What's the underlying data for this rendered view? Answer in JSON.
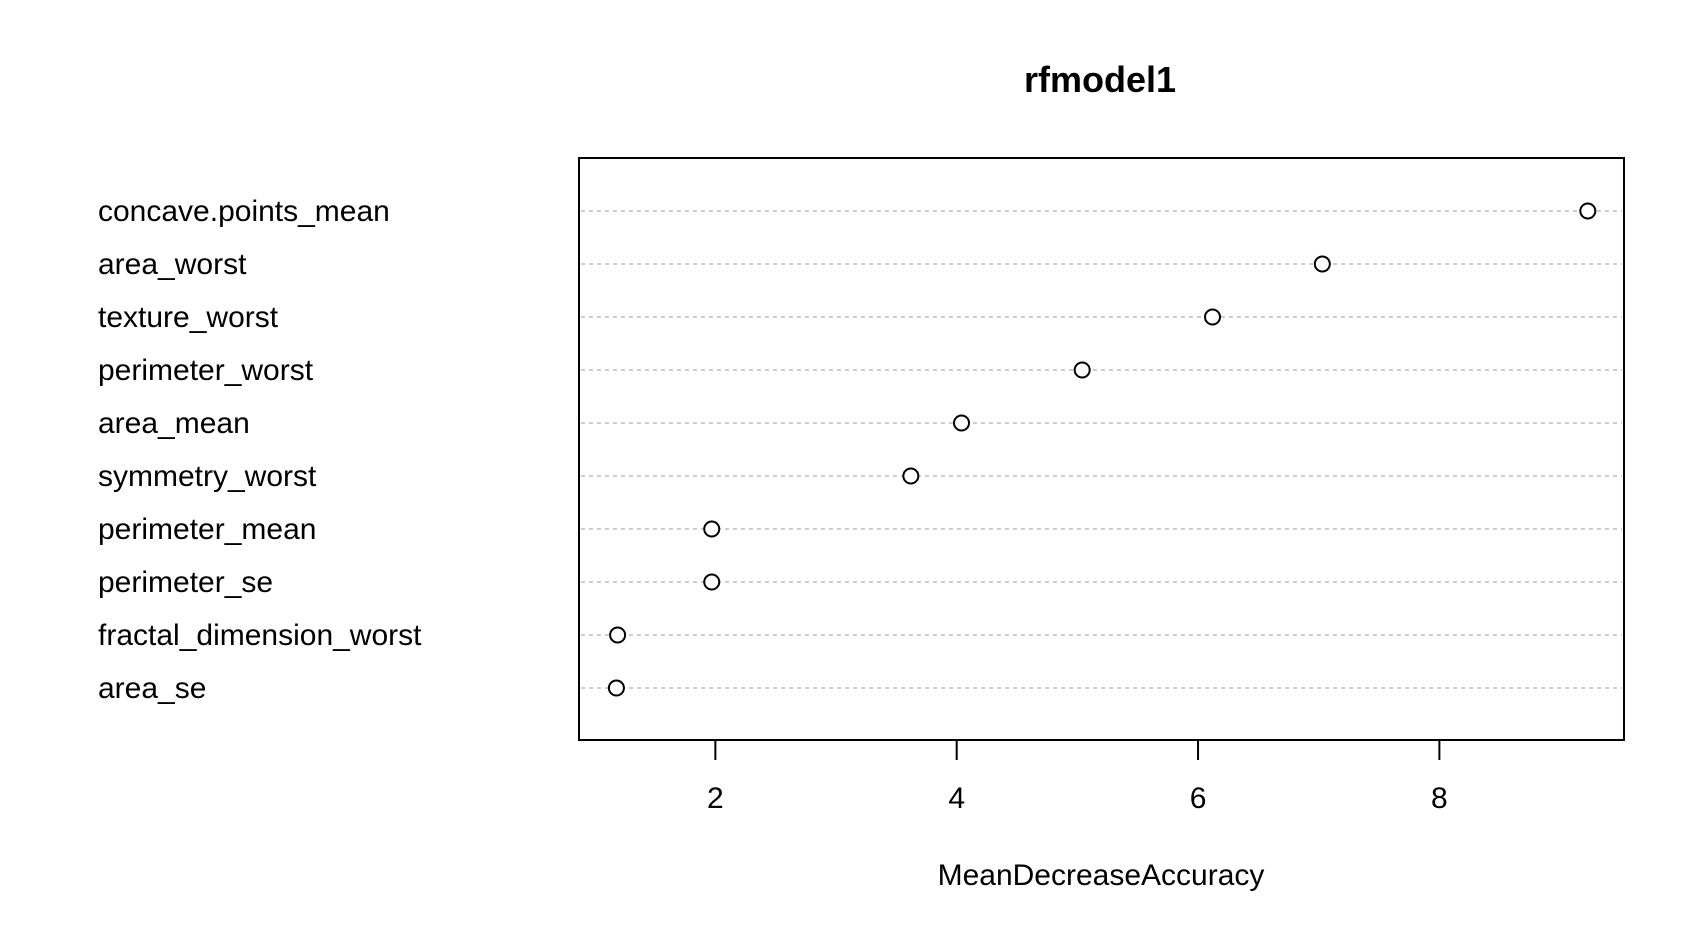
{
  "chart_data": {
    "type": "scatter",
    "subtype": "dotchart",
    "title": "rfmodel1",
    "xlabel": "MeanDecreaseAccuracy",
    "ylabel": "",
    "xlim": [
      0.87,
      9.53
    ],
    "x_ticks": [
      2,
      4,
      6,
      8
    ],
    "grid": "dotted-horizontal",
    "legend": "none",
    "categories": [
      "concave.points_mean",
      "area_worst",
      "texture_worst",
      "perimeter_worst",
      "area_mean",
      "symmetry_worst",
      "perimeter_mean",
      "perimeter_se",
      "fractal_dimension_worst",
      "area_se"
    ],
    "values": [
      9.23,
      7.03,
      6.12,
      5.04,
      4.04,
      3.62,
      1.97,
      1.97,
      1.19,
      1.18
    ]
  },
  "colors": {
    "point_stroke": "#000000",
    "gridline": "#bebebe",
    "frame": "#000000"
  }
}
